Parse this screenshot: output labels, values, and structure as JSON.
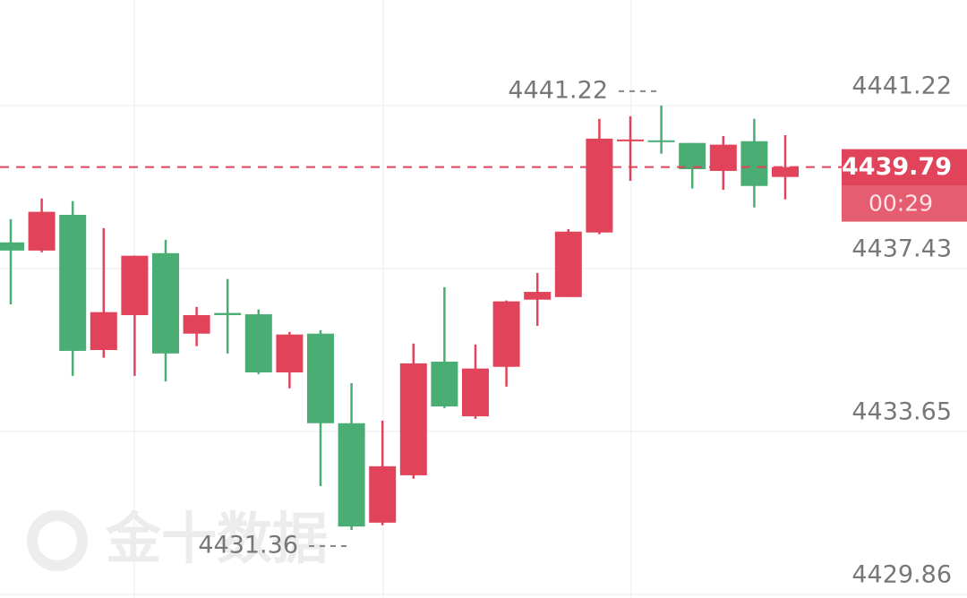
{
  "chart_data": {
    "type": "candlestick",
    "categories": [
      null,
      null,
      null,
      null,
      null,
      null,
      null,
      null,
      null,
      null,
      null,
      null,
      null,
      null,
      null,
      null,
      null,
      null,
      null,
      null,
      null,
      null,
      null,
      null,
      null,
      null
    ],
    "open": [
      4438.04,
      4437.85,
      4438.68,
      4435.54,
      4436.35,
      4437.79,
      4435.92,
      4436.4,
      4436.37,
      4435.02,
      4435.92,
      4433.84,
      4431.53,
      4432.63,
      4435.27,
      4434.0,
      4435.15,
      4436.71,
      4436.77,
      4438.27,
      4440.41,
      4440.41,
      4440.35,
      4439.7,
      4440.39,
      4439.56
    ],
    "high": [
      4438.58,
      4439.06,
      4439.0,
      4438.37,
      4437.73,
      4438.1,
      4436.54,
      4437.19,
      4436.48,
      4435.96,
      4436.0,
      4434.77,
      4433.9,
      4435.69,
      4437.0,
      4435.67,
      4436.69,
      4437.33,
      4438.35,
      4440.91,
      4440.97,
      4441.22,
      4440.35,
      4440.51,
      4440.91,
      4440.53
    ],
    "low": [
      4436.6,
      4437.81,
      4434.94,
      4435.36,
      4434.94,
      4434.81,
      4435.63,
      4435.46,
      4434.98,
      4434.65,
      4432.38,
      4431.36,
      4431.47,
      4432.55,
      4434.19,
      4433.94,
      4434.69,
      4436.1,
      4436.77,
      4438.23,
      4439.47,
      4440.1,
      4439.29,
      4439.26,
      4438.85,
      4439.04
    ],
    "close": [
      4437.85,
      4438.75,
      4435.52,
      4436.42,
      4437.73,
      4435.46,
      4436.35,
      4436.35,
      4435.02,
      4435.9,
      4433.84,
      4431.44,
      4432.84,
      4435.23,
      4434.23,
      4435.11,
      4436.67,
      4436.89,
      4438.29,
      4440.45,
      4440.43,
      4440.39,
      4439.74,
      4440.31,
      4439.35,
      4439.79
    ],
    "up_color": "#e1435a",
    "down_color": "#4aad74",
    "ylim": [
      4429.78,
      4443.67
    ],
    "yticks": [
      4429.86,
      4433.65,
      4437.43,
      4441.22
    ],
    "grid": true,
    "current_price": 4439.79,
    "countdown": "00:29",
    "max_label": 4441.22,
    "min_label": 4431.36,
    "watermark": "金十数据"
  }
}
